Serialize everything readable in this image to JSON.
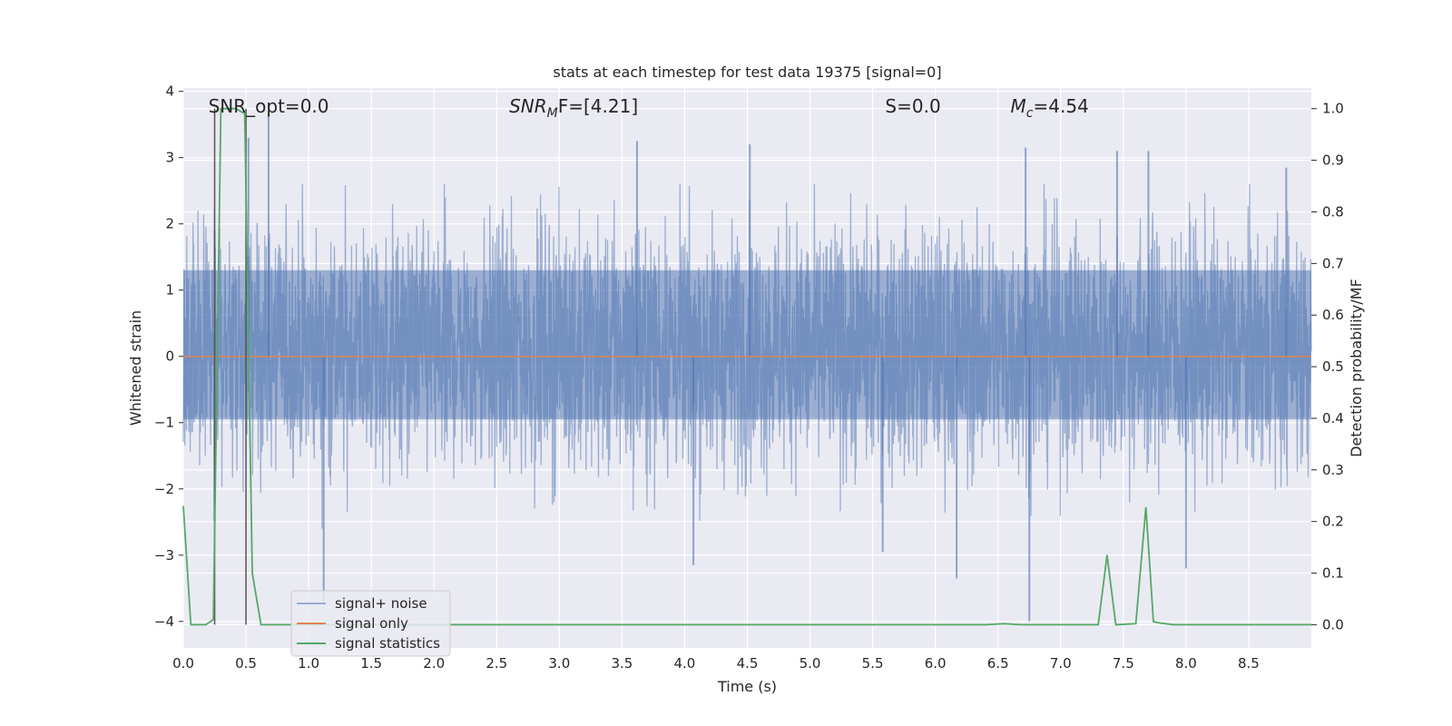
{
  "chart_data": {
    "type": "line",
    "title": "stats at each timestep for test data 19375 [signal=0]",
    "xlabel": "Time (s)",
    "ylabel": "Whitened strain",
    "y2label": "Detection probability/MF",
    "xlim": [
      0.0,
      9.0
    ],
    "ylim": [
      -4.4,
      4.05
    ],
    "y2lim": [
      -0.045,
      1.04
    ],
    "xticks": [
      0.0,
      0.5,
      1.0,
      1.5,
      2.0,
      2.5,
      3.0,
      3.5,
      4.0,
      4.5,
      5.0,
      5.5,
      6.0,
      6.5,
      7.0,
      7.5,
      8.0,
      8.5
    ],
    "yticks": [
      4,
      3,
      2,
      1,
      0,
      -1,
      -2,
      -3,
      -4
    ],
    "y2ticks": [
      1.0,
      0.9,
      0.8,
      0.7,
      0.6,
      0.5,
      0.4,
      0.3,
      0.2,
      0.1,
      0.0
    ],
    "xtick_labels": [
      "0.0",
      "0.5",
      "1.0",
      "1.5",
      "2.0",
      "2.5",
      "3.0",
      "3.5",
      "4.0",
      "4.5",
      "5.0",
      "5.5",
      "6.0",
      "6.5",
      "7.0",
      "7.5",
      "8.0",
      "8.5"
    ],
    "ytick_labels": [
      "4",
      "3",
      "2",
      "1",
      "0",
      "−1",
      "−2",
      "−3",
      "−4"
    ],
    "y2tick_labels": [
      "1.0",
      "0.9",
      "0.8",
      "0.7",
      "0.6",
      "0.5",
      "0.4",
      "0.3",
      "0.2",
      "0.1",
      "0.0"
    ],
    "grid": true,
    "legend_position": "bottom-left",
    "annotations": [
      {
        "base": "SNR_opt=0.0",
        "sub": "",
        "rest": "",
        "x": 0.2
      },
      {
        "base": "SNR",
        "sub": "M",
        "rest": "F=[4.21]",
        "x": 2.6
      },
      {
        "base": "S",
        "sub": "",
        "rest": "=0.0",
        "x": 5.6
      },
      {
        "base": "M",
        "sub": "c",
        "rest": "=4.54",
        "x": 6.6
      }
    ],
    "vlines": [
      0.25,
      0.5
    ],
    "series": [
      {
        "name": "signal+ noise",
        "axis": "left",
        "color": "#4c72b0",
        "opacity": 0.5,
        "note_style": "dense noise band",
        "typical_envelope": [
          -1.6,
          2.0
        ],
        "peaks": [
          {
            "x": 0.25,
            "y": 1.9
          },
          {
            "x": 0.52,
            "y": 3.3
          },
          {
            "x": 0.68,
            "y": 3.65
          },
          {
            "x": 3.62,
            "y": 3.25
          },
          {
            "x": 4.52,
            "y": 3.2
          },
          {
            "x": 6.72,
            "y": 3.15
          },
          {
            "x": 7.45,
            "y": 3.1
          },
          {
            "x": 7.7,
            "y": 3.1
          },
          {
            "x": 8.8,
            "y": 2.85
          },
          {
            "x": 1.12,
            "y": -3.75
          },
          {
            "x": 4.07,
            "y": -3.15
          },
          {
            "x": 6.17,
            "y": -3.35
          },
          {
            "x": 6.75,
            "y": -4.0
          },
          {
            "x": 8.0,
            "y": -3.2
          },
          {
            "x": 5.58,
            "y": -2.95
          }
        ]
      },
      {
        "name": "signal only",
        "axis": "left",
        "color": "#dd8452",
        "x": [
          0.0,
          9.0
        ],
        "y": [
          0.0,
          0.0
        ]
      },
      {
        "name": "signal statistics",
        "axis": "right",
        "color": "#55a868",
        "x": [
          0.0,
          0.06,
          0.18,
          0.24,
          0.3,
          0.36,
          0.42,
          0.49,
          0.55,
          0.62,
          6.4,
          6.55,
          6.68,
          7.3,
          7.37,
          7.44,
          7.6,
          7.68,
          7.74,
          7.8,
          7.9,
          9.0
        ],
        "y": [
          0.23,
          0.0,
          0.0,
          0.01,
          1.0,
          1.0,
          1.0,
          0.99,
          0.1,
          0.0,
          0.0,
          0.002,
          0.0,
          0.0,
          0.135,
          0.0,
          0.002,
          0.228,
          0.006,
          0.003,
          0.0,
          0.0
        ]
      }
    ]
  }
}
